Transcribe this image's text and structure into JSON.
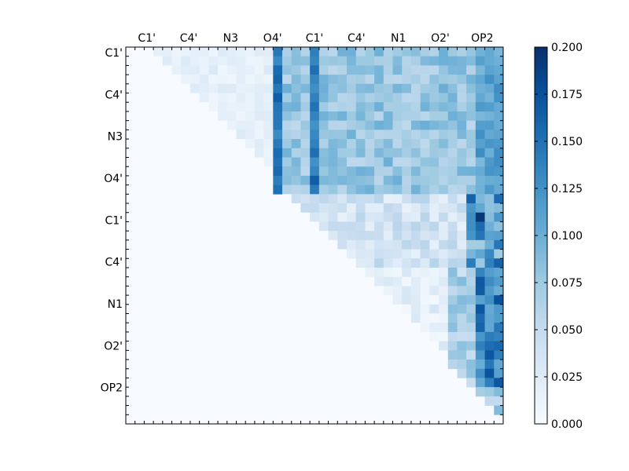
{
  "chart_data": {
    "type": "heatmap",
    "title": "",
    "colormap": "Blues",
    "colormap_stops": [
      "#f7fbff",
      "#deebf7",
      "#c6dbef",
      "#9ecae1",
      "#6baed6",
      "#4292c6",
      "#2171b5",
      "#08519c",
      "#08306b"
    ],
    "n_rows": 41,
    "n_cols": 41,
    "x_tick_labels": [
      "C1'",
      "C4'",
      "N3",
      "O4'",
      "C1'",
      "C4'",
      "N1",
      "O2'",
      "OP2"
    ],
    "y_tick_labels": [
      "C1'",
      "C4'",
      "N3",
      "O4'",
      "C1'",
      "C4'",
      "N1",
      "O2'",
      "OP2"
    ],
    "x_labels_position": "top",
    "vmin": 0.0,
    "vmax": 0.2,
    "colorbar_ticks": [
      "0.000",
      "0.025",
      "0.050",
      "0.075",
      "0.100",
      "0.125",
      "0.150",
      "0.175",
      "0.200"
    ],
    "colorbar_tick_values": [
      0.0,
      0.025,
      0.05,
      0.075,
      0.1,
      0.125,
      0.15,
      0.175,
      0.2
    ],
    "matrix_structure": "upper-triangular; lower triangle and diagonal are 0",
    "notable_values": [
      {
        "row": 18,
        "col": 38,
        "value": 0.195
      },
      {
        "row": 14,
        "col": 20,
        "value": 0.165
      },
      {
        "row": 3,
        "col": 16,
        "value": 0.16
      },
      {
        "row": 5,
        "col": 16,
        "value": 0.165
      },
      {
        "row": 27,
        "col": 40,
        "value": 0.175
      }
    ]
  }
}
